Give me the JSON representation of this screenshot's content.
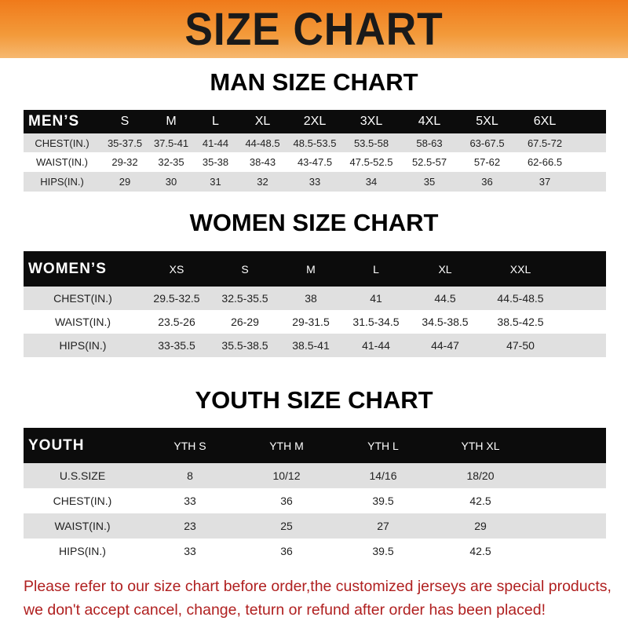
{
  "banner": {
    "title": "SIZE CHART"
  },
  "men": {
    "title": "MAN SIZE CHART",
    "header": [
      "MEN’S",
      "S",
      "M",
      "L",
      "XL",
      "2XL",
      "3XL",
      "4XL",
      "5XL",
      "6XL"
    ],
    "rows": [
      [
        "CHEST(IN.)",
        "35-37.5",
        "37.5-41",
        "41-44",
        "44-48.5",
        "48.5-53.5",
        "53.5-58",
        "58-63",
        "63-67.5",
        "67.5-72"
      ],
      [
        "WAIST(IN.)",
        "29-32",
        "32-35",
        "35-38",
        "38-43",
        "43-47.5",
        "47.5-52.5",
        "52.5-57",
        "57-62",
        "62-66.5"
      ],
      [
        "HIPS(IN.)",
        "29",
        "30",
        "31",
        "32",
        "33",
        "34",
        "35",
        "36",
        "37"
      ]
    ]
  },
  "women": {
    "title": "WOMEN SIZE CHART",
    "header": [
      "WOMEN’S",
      "XS",
      "S",
      "M",
      "L",
      "XL",
      "XXL"
    ],
    "rows": [
      [
        "CHEST(IN.)",
        "29.5-32.5",
        "32.5-35.5",
        "38",
        "41",
        "44.5",
        "44.5-48.5"
      ],
      [
        "WAIST(IN.)",
        "23.5-26",
        "26-29",
        "29-31.5",
        "31.5-34.5",
        "34.5-38.5",
        "38.5-42.5"
      ],
      [
        "HIPS(IN.)",
        "33-35.5",
        "35.5-38.5",
        "38.5-41",
        "41-44",
        "44-47",
        "47-50"
      ]
    ]
  },
  "youth": {
    "title": "YOUTH SIZE CHART",
    "header": [
      "YOUTH",
      "YTH S",
      "YTH M",
      "YTH L",
      "YTH XL"
    ],
    "rows": [
      [
        "U.S.SIZE",
        "8",
        "10/12",
        "14/16",
        "18/20"
      ],
      [
        "CHEST(IN.)",
        "33",
        "36",
        "39.5",
        "42.5"
      ],
      [
        "WAIST(IN.)",
        "23",
        "25",
        "27",
        "29"
      ],
      [
        "HIPS(IN.)",
        "33",
        "36",
        "39.5",
        "42.5"
      ]
    ]
  },
  "notice": {
    "line1": "Please refer to our size chart before order,the customized jerseys are special products,",
    "line2": "we don't accept cancel, change, teturn or refund after order has been placed!"
  },
  "colors": {
    "banner": "#f07a1a",
    "header_row": "#0c0c0c",
    "stripe": "#e0e0e0",
    "notice": "#b02020"
  }
}
